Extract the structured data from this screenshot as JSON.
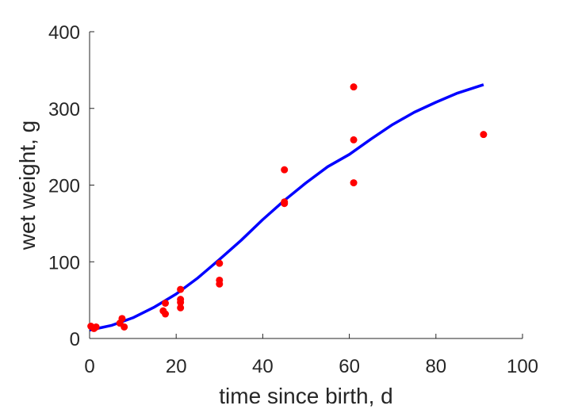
{
  "chart_data": {
    "type": "scatter",
    "title": "",
    "xlabel": "time since birth, d",
    "ylabel": "wet weight, g",
    "xlim": [
      0,
      100
    ],
    "ylim": [
      0,
      400
    ],
    "x_ticks": [
      "0",
      "20",
      "40",
      "60",
      "80",
      "100"
    ],
    "y_ticks": [
      "0",
      "100",
      "200",
      "300",
      "400"
    ],
    "grid": false,
    "legend": "none",
    "series": [
      {
        "kind": "points",
        "color": "#ff0000",
        "x": [
          0.3,
          1,
          1.5,
          7,
          7.5,
          8,
          17,
          17.5,
          17.5,
          21,
          21,
          21,
          21,
          30,
          30,
          30,
          45,
          45,
          45,
          61,
          61,
          61,
          91
        ],
        "y": [
          16,
          13,
          15,
          20,
          26,
          15,
          36,
          32,
          46,
          40,
          47,
          51,
          64,
          71,
          76,
          98,
          220,
          176,
          178,
          328,
          259,
          203,
          266
        ]
      },
      {
        "kind": "line",
        "color": "#0000ff",
        "x": [
          0,
          5,
          10,
          15,
          20,
          25,
          30,
          35,
          40,
          45,
          50,
          55,
          60,
          65,
          70,
          75,
          80,
          85,
          91
        ],
        "y": [
          11,
          17,
          27,
          41,
          58,
          79,
          103,
          128,
          155,
          180,
          203,
          224,
          240,
          260,
          279,
          295,
          308,
          320,
          331
        ]
      }
    ]
  }
}
